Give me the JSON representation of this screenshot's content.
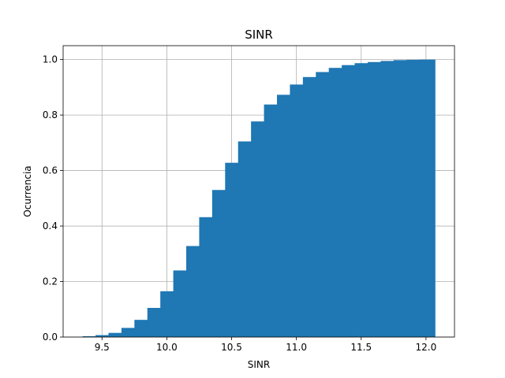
{
  "chart_data": {
    "type": "bar",
    "histogram": true,
    "cumulative": true,
    "title": "SINR",
    "xlabel": "SINR",
    "ylabel": "Ocurrencia",
    "xlim": [
      9.2,
      12.22
    ],
    "ylim": [
      0.0,
      1.05
    ],
    "xticks": [
      "9.5",
      "10.0",
      "10.5",
      "11.0",
      "11.5",
      "12.0"
    ],
    "yticks": [
      "0.0",
      "0.2",
      "0.4",
      "0.6",
      "0.8",
      "1.0"
    ],
    "grid": true,
    "color": "#1f77b4",
    "bin_edges": [
      9.35,
      9.45,
      9.55,
      9.65,
      9.75,
      9.85,
      9.95,
      10.05,
      10.15,
      10.25,
      10.35,
      10.45,
      10.55,
      10.65,
      10.75,
      10.85,
      10.95,
      11.05,
      11.15,
      11.25,
      11.35,
      11.45,
      11.55,
      11.65,
      11.75,
      11.85,
      11.95,
      12.07
    ],
    "values": [
      0.003,
      0.007,
      0.015,
      0.033,
      0.062,
      0.105,
      0.165,
      0.24,
      0.328,
      0.432,
      0.53,
      0.628,
      0.705,
      0.777,
      0.838,
      0.873,
      0.91,
      0.937,
      0.955,
      0.97,
      0.98,
      0.987,
      0.991,
      0.995,
      0.998,
      0.999,
      1.0
    ]
  }
}
